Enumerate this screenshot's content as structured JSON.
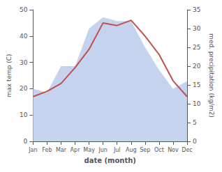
{
  "chart_data": {
    "type": "line",
    "categories": [
      "Jan",
      "Feb",
      "Mar",
      "Apr",
      "May",
      "Jun",
      "Jul",
      "Aug",
      "Sep",
      "Oct",
      "Nov",
      "Dec"
    ],
    "series": [
      {
        "type": "area",
        "color": "#c5d3ee",
        "axis": "y2",
        "values": [
          14,
          13,
          20,
          20,
          30,
          33,
          32,
          32,
          25,
          19,
          14,
          16
        ]
      },
      {
        "type": "line",
        "color": "#c0504d",
        "values": [
          17,
          19,
          22,
          28,
          35,
          45,
          44,
          46,
          40,
          33,
          23,
          17
        ]
      }
    ],
    "xlabel": "date (month)",
    "ylabel": "max temp (C)",
    "y2label": "med. precipitation (kg/m2)",
    "ylim": [
      0,
      50
    ],
    "yticks": [
      0,
      10,
      20,
      30,
      40,
      50
    ],
    "y2lim": [
      0,
      35
    ],
    "y2ticks": [
      0,
      5,
      10,
      15,
      20,
      25,
      30,
      35
    ],
    "grid": false
  }
}
